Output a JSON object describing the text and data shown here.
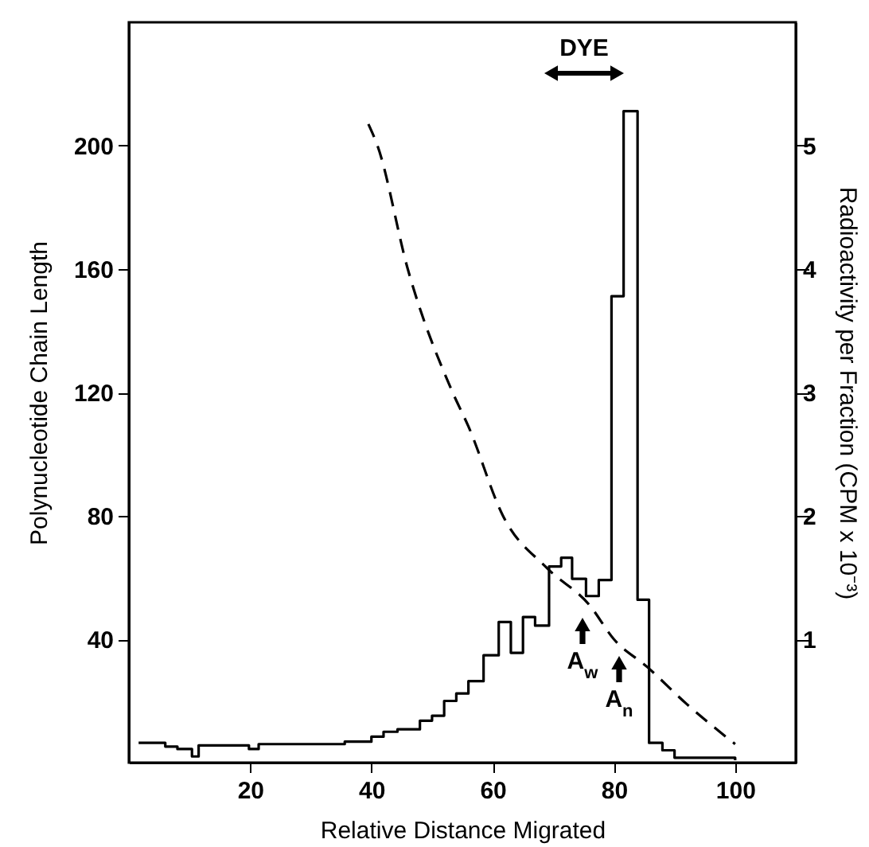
{
  "chart_data": {
    "type": "line",
    "xlabel": "Relative Distance Migrated",
    "ylabel": "Polynucleotide Chain Length",
    "y2label": "Radioactivity per Fraction (CPM x 10⁻³)",
    "xlim": [
      0,
      110
    ],
    "xticks": [
      20,
      40,
      60,
      80,
      100
    ],
    "ylim": [
      0,
      240
    ],
    "yticks": [
      40,
      80,
      120,
      160,
      200
    ],
    "y2lim": [
      0,
      6
    ],
    "y2ticks": [
      1,
      2,
      3,
      4,
      5
    ],
    "grid": false,
    "series": [
      {
        "type": "line",
        "line_style": "dashed",
        "color": "#000000",
        "x": [
          39.5,
          41,
          46,
          53.4,
          56,
          61.7,
          69,
          76,
          80,
          85.5,
          92,
          100
        ],
        "values": [
          207,
          200,
          160,
          120,
          109,
          80,
          63,
          51,
          40,
          31,
          19,
          6
        ]
      },
      {
        "type": "step",
        "axis": "y2",
        "color": "#000000",
        "x": [
          1.6,
          4,
          6,
          8,
          10.4,
          11.5,
          19.8,
          21.4,
          30,
          35.6,
          40,
          42,
          44.3,
          48,
          50,
          52,
          54,
          56,
          58.5,
          61,
          63,
          65,
          67,
          69.3,
          71.3,
          73.1,
          75.4,
          77.5,
          79.6,
          81.6,
          83.9,
          85.8,
          88,
          90,
          100
        ],
        "values": [
          0.16,
          0.16,
          0.13,
          0.11,
          0.05,
          0.14,
          0.11,
          0.15,
          0.15,
          0.17,
          0.21,
          0.25,
          0.27,
          0.34,
          0.38,
          0.5,
          0.56,
          0.66,
          0.87,
          1.14,
          0.89,
          1.18,
          1.11,
          1.59,
          1.66,
          1.49,
          1.35,
          1.48,
          3.78,
          5.28,
          1.32,
          0.16,
          0.1,
          0.04,
          0.02
        ]
      }
    ],
    "annotations": [
      "DYE",
      "A$_{w}$",
      "A$_{n}$"
    ]
  }
}
